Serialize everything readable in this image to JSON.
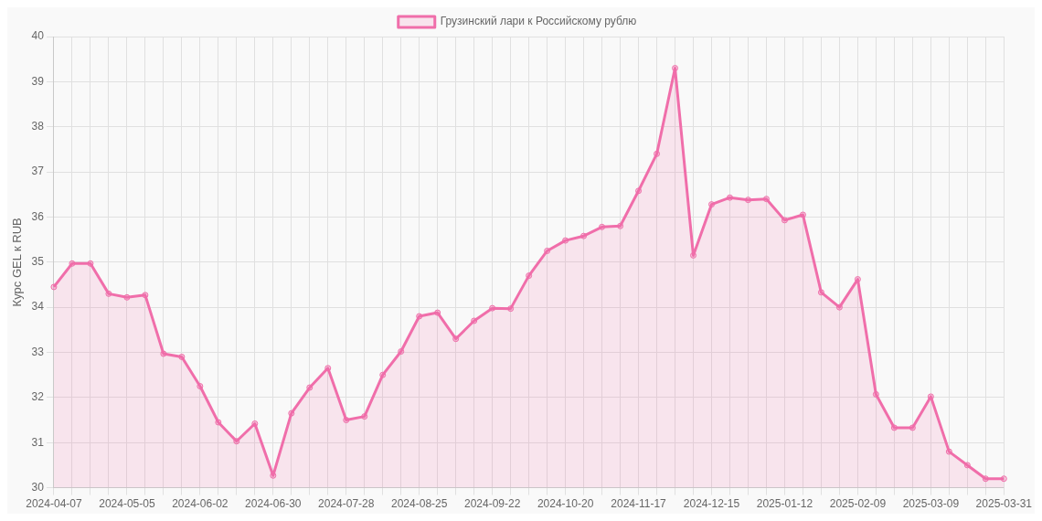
{
  "chart_data": {
    "type": "area",
    "ylabel": "Курс GEL к RUB",
    "categories": [
      "2024-04-07",
      null,
      null,
      null,
      "2024-05-05",
      null,
      null,
      null,
      "2024-06-02",
      null,
      null,
      null,
      "2024-06-30",
      null,
      null,
      null,
      "2024-07-28",
      null,
      null,
      null,
      "2024-08-25",
      null,
      null,
      null,
      "2024-09-22",
      null,
      null,
      null,
      "2024-10-20",
      null,
      null,
      null,
      "2024-11-17",
      null,
      null,
      null,
      "2024-12-15",
      null,
      null,
      null,
      "2025-01-12",
      null,
      null,
      null,
      "2025-02-09",
      null,
      null,
      null,
      "2025-03-09",
      null,
      null,
      null,
      "2025-03-31"
    ],
    "series": [
      {
        "name": "Грузинский лари к Российскому рублю",
        "color": "#f06eaa",
        "values": [
          34.45,
          34.97,
          34.97,
          34.3,
          34.22,
          34.27,
          32.97,
          32.9,
          32.25,
          31.45,
          31.03,
          31.42,
          30.27,
          31.65,
          32.22,
          32.65,
          31.5,
          31.58,
          32.5,
          33.02,
          33.8,
          33.88,
          33.3,
          33.7,
          33.98,
          33.97,
          34.7,
          35.25,
          35.48,
          35.58,
          35.78,
          35.8,
          36.58,
          37.4,
          39.3,
          35.15,
          36.28,
          36.43,
          36.38,
          36.4,
          35.93,
          36.05,
          34.33,
          34.0,
          34.62,
          32.07,
          31.33,
          31.33,
          32.02,
          30.8,
          30.5,
          30.2,
          30.2
        ]
      }
    ],
    "ylim": [
      30,
      40
    ],
    "yticks": [
      30,
      31,
      32,
      33,
      34,
      35,
      36,
      37,
      38,
      39,
      40
    ],
    "grid": true,
    "legend": "top",
    "marker": "circle"
  }
}
